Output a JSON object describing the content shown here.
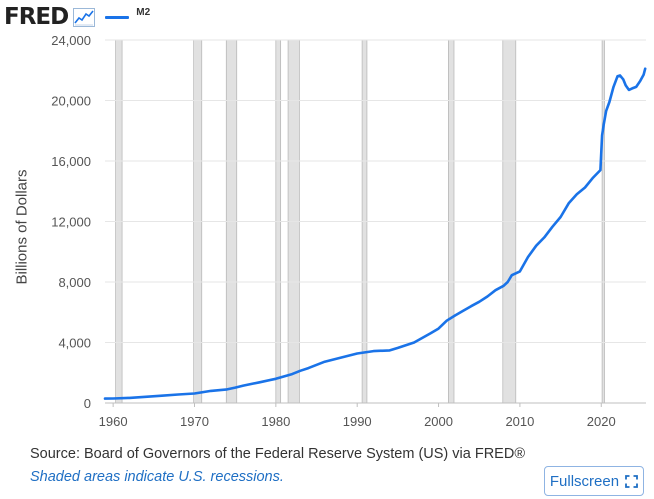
{
  "header": {
    "logo_text": "FRED",
    "logo_icon": "line-chart-icon"
  },
  "legend": {
    "series_label": "M2",
    "color": "#1a73e8"
  },
  "chart_data": {
    "type": "line",
    "title": "M2",
    "xlabel": "",
    "ylabel": "Billions of Dollars",
    "xlim": [
      1959.0,
      2025.5
    ],
    "ylim": [
      0,
      24000
    ],
    "yticks": [
      0,
      4000,
      8000,
      12000,
      16000,
      20000,
      24000
    ],
    "ytick_labels": [
      "0",
      "4,000",
      "8,000",
      "12,000",
      "16,000",
      "20,000",
      "24,000"
    ],
    "xticks": [
      1960,
      1970,
      1980,
      1990,
      2000,
      2010,
      2020
    ],
    "xtick_labels": [
      "1960",
      "1970",
      "1980",
      "1990",
      "2000",
      "2010",
      "2020"
    ],
    "grid": "horizontal",
    "recessions": [
      [
        1960.3,
        1961.1
      ],
      [
        1969.9,
        1970.9
      ],
      [
        1973.9,
        1975.2
      ],
      [
        1980.0,
        1980.6
      ],
      [
        1981.5,
        1982.9
      ],
      [
        1990.6,
        1991.2
      ],
      [
        2001.2,
        2001.9
      ],
      [
        2007.9,
        2009.5
      ],
      [
        2020.1,
        2020.4
      ]
    ],
    "series": [
      {
        "name": "M2",
        "color": "#1a73e8",
        "x": [
          1959.0,
          1960.0,
          1962.0,
          1964.0,
          1966.0,
          1968.0,
          1970.0,
          1972.0,
          1974.0,
          1975.0,
          1976.0,
          1978.0,
          1980.0,
          1982.0,
          1983.0,
          1984.0,
          1986.0,
          1988.0,
          1990.0,
          1992.0,
          1994.0,
          1995.0,
          1997.0,
          1999.0,
          2000.0,
          2001.0,
          2002.0,
          2003.0,
          2004.0,
          2005.0,
          2006.0,
          2007.0,
          2008.0,
          2008.5,
          2009.0,
          2010.0,
          2011.0,
          2012.0,
          2013.0,
          2014.0,
          2015.0,
          2016.0,
          2017.0,
          2018.0,
          2019.0,
          2019.9,
          2020.1,
          2020.3,
          2020.6,
          2021.0,
          2021.5,
          2022.0,
          2022.3,
          2022.7,
          2023.0,
          2023.4,
          2023.8,
          2024.3,
          2024.8,
          2025.2,
          2025.4
        ],
        "values": [
          290,
          300,
          340,
          410,
          480,
          560,
          630,
          800,
          900,
          1020,
          1150,
          1370,
          1600,
          1910,
          2130,
          2310,
          2730,
          3000,
          3270,
          3430,
          3480,
          3640,
          4000,
          4600,
          4920,
          5440,
          5780,
          6090,
          6400,
          6690,
          7040,
          7460,
          7750,
          8000,
          8450,
          8700,
          9650,
          10400,
          10950,
          11650,
          12300,
          13200,
          13800,
          14250,
          14900,
          15400,
          17700,
          18400,
          19300,
          19900,
          20900,
          21600,
          21650,
          21400,
          21000,
          20700,
          20800,
          20900,
          21300,
          21700,
          22100
        ]
      }
    ]
  },
  "footer": {
    "source": "Source: Board of Governors of the Federal Reserve System (US) via FRED®",
    "note": "Shaded areas indicate U.S. recessions.",
    "fullscreen_label": "Fullscreen"
  }
}
